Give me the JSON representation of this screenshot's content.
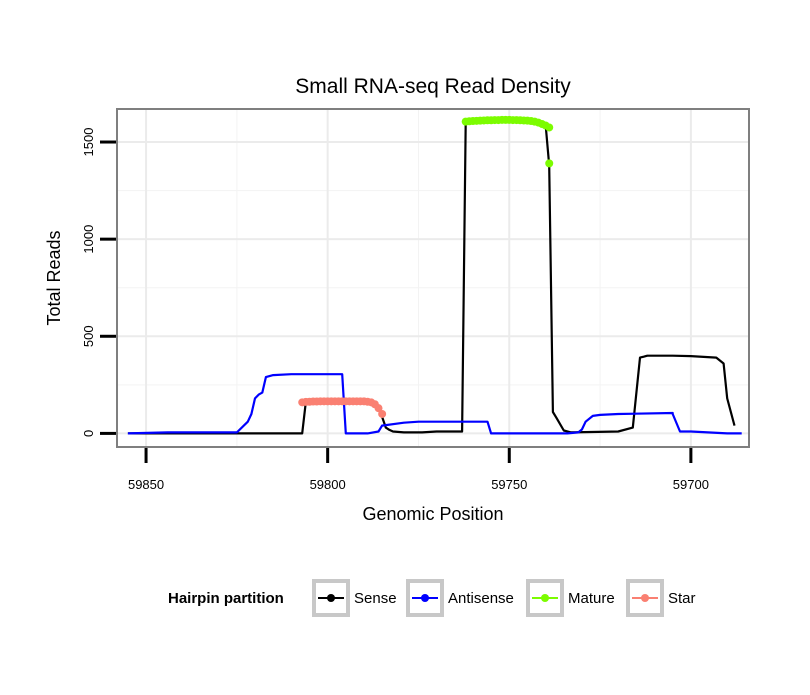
{
  "chart_data": {
    "type": "line",
    "title": "Small RNA-seq Read Density",
    "xlabel": "Genomic Position",
    "ylabel": "Total Reads",
    "xlim": [
      59858,
      59684
    ],
    "x_reversed": true,
    "ylim": [
      -70,
      1670
    ],
    "x_ticks": [
      59850,
      59800,
      59750,
      59700
    ],
    "y_ticks": [
      0,
      500,
      1000,
      1500
    ],
    "grid": true,
    "legend": {
      "title": "Hairpin partition",
      "placement": "bottom",
      "entries": [
        {
          "name": "Sense",
          "color": "#000000"
        },
        {
          "name": "Antisense",
          "color": "#0000ff"
        },
        {
          "name": "Mature",
          "color": "#7cfc00"
        },
        {
          "name": "Star",
          "color": "#fa8072"
        }
      ]
    },
    "series": [
      {
        "name": "Sense",
        "color": "#000000",
        "style": "line",
        "x": [
          59855,
          59807,
          59806,
          59800,
          59790,
          59786,
          59785,
          59784,
          59783,
          59782,
          59779,
          59777,
          59774,
          59770,
          59763,
          59762,
          59761,
          59761,
          59760,
          59757,
          59755,
          59750,
          59740,
          59739,
          59738,
          59737,
          59735,
          59733,
          59720,
          59716,
          59714,
          59713,
          59712,
          59710,
          59705,
          59700,
          59693,
          59691,
          59690,
          59688
        ],
        "y": [
          0,
          0,
          165,
          165,
          165,
          140,
          85,
          30,
          18,
          10,
          5,
          5,
          5,
          10,
          10,
          1600,
          1610,
          1615,
          1615,
          1615,
          1620,
          1618,
          1590,
          1380,
          110,
          80,
          15,
          5,
          10,
          30,
          390,
          395,
          400,
          400,
          400,
          398,
          390,
          360,
          180,
          40
        ]
      },
      {
        "name": "Antisense",
        "color": "#0000ff",
        "style": "line",
        "x": [
          59855,
          59844,
          59825,
          59822,
          59821,
          59820,
          59819,
          59818,
          59817,
          59815,
          59810,
          59800,
          59797,
          59796,
          59795,
          59789,
          59786,
          59785,
          59779,
          59775,
          59768,
          59760,
          59757,
          59756,
          59755,
          59740,
          59734,
          59731,
          59730,
          59729,
          59727,
          59725,
          59720,
          59705,
          59705,
          59703,
          59700,
          59690,
          59686
        ],
        "y": [
          0,
          5,
          5,
          60,
          100,
          180,
          200,
          210,
          290,
          300,
          305,
          305,
          305,
          305,
          0,
          0,
          10,
          40,
          55,
          60,
          60,
          60,
          60,
          60,
          0,
          0,
          0,
          5,
          20,
          60,
          90,
          95,
          100,
          105,
          100,
          10,
          10,
          0,
          0
        ]
      },
      {
        "name": "Mature",
        "color": "#7cfc00",
        "style": "points",
        "x": [
          59762,
          59761,
          59760,
          59759,
          59758,
          59757,
          59756,
          59755,
          59754,
          59753,
          59752,
          59751,
          59750,
          59749,
          59748,
          59747,
          59746,
          59745,
          59744,
          59743,
          59742,
          59741,
          59740,
          59739,
          59739
        ],
        "y": [
          1605,
          1607,
          1608,
          1609,
          1610,
          1611,
          1612,
          1612,
          1613,
          1613,
          1614,
          1614,
          1614,
          1613,
          1613,
          1612,
          1611,
          1610,
          1608,
          1605,
          1600,
          1593,
          1585,
          1575,
          1390
        ]
      },
      {
        "name": "Star",
        "color": "#fa8072",
        "style": "points",
        "x": [
          59807,
          59806,
          59805,
          59804,
          59803,
          59802,
          59801,
          59800,
          59799,
          59798,
          59797,
          59796,
          59795,
          59794,
          59793,
          59792,
          59791,
          59790,
          59789,
          59788,
          59787,
          59786,
          59785
        ],
        "y": [
          160,
          162,
          163,
          164,
          164,
          165,
          165,
          165,
          165,
          165,
          165,
          165,
          165,
          165,
          165,
          165,
          165,
          165,
          163,
          160,
          150,
          130,
          100
        ]
      }
    ]
  }
}
